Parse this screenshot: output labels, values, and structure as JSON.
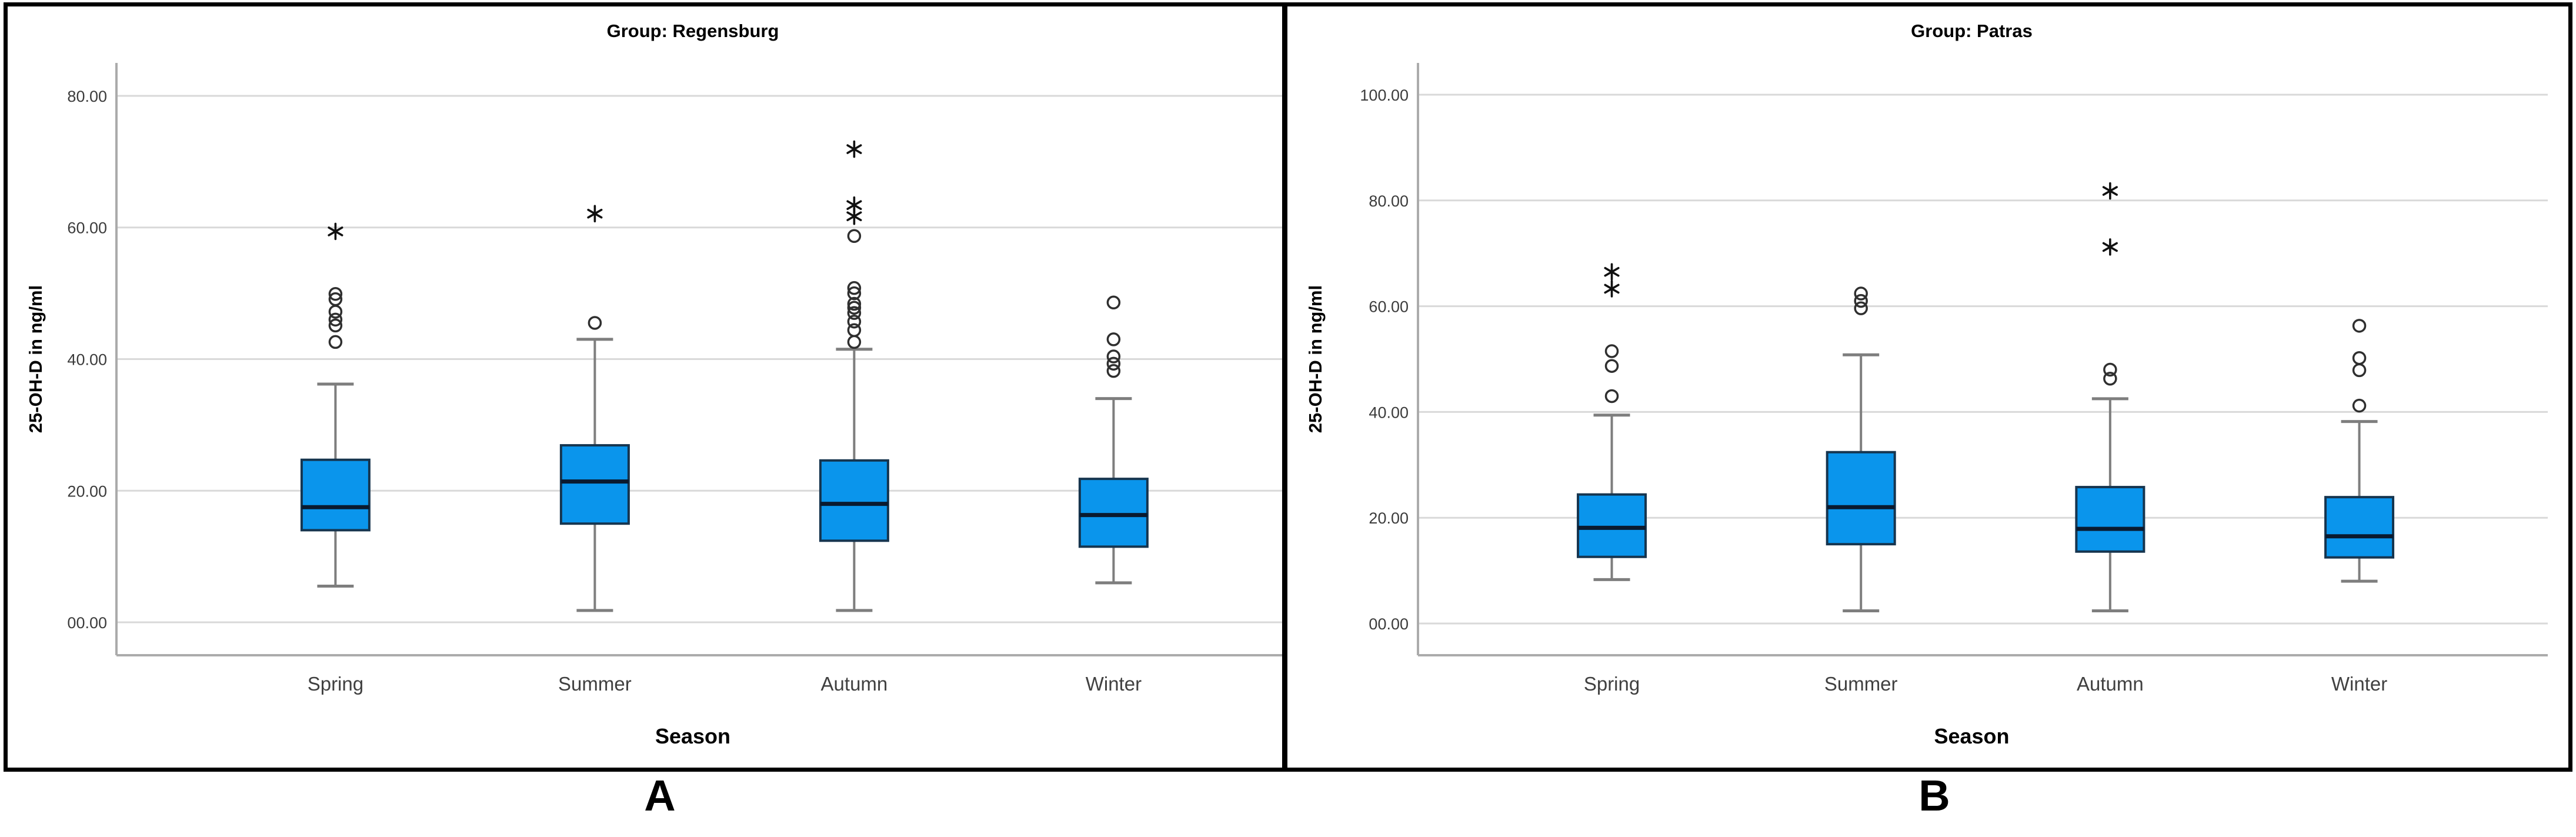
{
  "figure": {
    "panel_a_label": "A",
    "panel_b_label": "B"
  },
  "colors": {
    "box_fill": "#0A95EC",
    "box_border": "#16354F",
    "median": "#0A1A2F",
    "whisker": "#7E7E7E",
    "gridline": "#D9D9D9",
    "axis": "#ABABAB",
    "outlier": "#2F2F2F",
    "extreme": "#111111",
    "tick_text": "#3C3C3C",
    "category_text": "#404040",
    "title_text": "#000000",
    "frame": "#000000"
  },
  "chart_data": [
    {
      "type": "boxplot",
      "panel": "A",
      "title": "Group: Regensburg",
      "xlabel": "Season",
      "ylabel": "25-OH-D in ng/ml",
      "ylim": [
        -5,
        85
      ],
      "grid": true,
      "yticks": [
        {
          "value": 0,
          "label": "00.00"
        },
        {
          "value": 20,
          "label": "20.00"
        },
        {
          "value": 40,
          "label": "40.00"
        },
        {
          "value": 60,
          "label": "60.00"
        },
        {
          "value": 80,
          "label": "80.00"
        }
      ],
      "categories": [
        "Spring",
        "Summer",
        "Autumn",
        "Winter"
      ],
      "boxes": [
        {
          "category": "Spring",
          "whisker_low": 5.5,
          "q1": 14.0,
          "median": 17.5,
          "q3": 24.7,
          "whisker_high": 36.2,
          "outliers": [
            42.6,
            45.1,
            46.0,
            47.2,
            49.1,
            49.9
          ],
          "extremes": [
            59.4
          ]
        },
        {
          "category": "Summer",
          "whisker_low": 1.8,
          "q1": 15.0,
          "median": 21.4,
          "q3": 26.9,
          "whisker_high": 43.0,
          "outliers": [
            45.5
          ],
          "extremes": [
            62.1
          ]
        },
        {
          "category": "Autumn",
          "whisker_low": 1.8,
          "q1": 12.4,
          "median": 18.0,
          "q3": 24.6,
          "whisker_high": 41.5,
          "outliers": [
            42.6,
            44.4,
            45.7,
            47.0,
            47.8,
            48.4,
            50.0,
            50.8,
            58.7
          ],
          "extremes": [
            61.7,
            63.4,
            71.9
          ]
        },
        {
          "category": "Winter",
          "whisker_low": 6.0,
          "q1": 11.5,
          "median": 16.3,
          "q3": 21.8,
          "whisker_high": 34.0,
          "outliers": [
            38.2,
            39.3,
            40.4,
            43.0,
            48.6
          ],
          "extremes": []
        }
      ]
    },
    {
      "type": "boxplot",
      "panel": "B",
      "title": "Group: Patras",
      "xlabel": "Season",
      "ylabel": "25-OH-D in ng/ml",
      "ylim": [
        -6,
        106
      ],
      "grid": true,
      "yticks": [
        {
          "value": 0,
          "label": "00.00"
        },
        {
          "value": 20,
          "label": "20.00"
        },
        {
          "value": 40,
          "label": "40.00"
        },
        {
          "value": 60,
          "label": "60.00"
        },
        {
          "value": 80,
          "label": "80.00"
        },
        {
          "value": 100,
          "label": "100.00"
        }
      ],
      "categories": [
        "Spring",
        "Summer",
        "Autumn",
        "Winter"
      ],
      "boxes": [
        {
          "category": "Spring",
          "whisker_low": 8.3,
          "q1": 12.6,
          "median": 18.1,
          "q3": 24.4,
          "whisker_high": 39.4,
          "outliers": [
            43.0,
            48.7,
            51.5
          ],
          "extremes": [
            63.3,
            66.5
          ]
        },
        {
          "category": "Summer",
          "whisker_low": 2.4,
          "q1": 15.0,
          "median": 22.0,
          "q3": 32.4,
          "whisker_high": 50.8,
          "outliers": [
            59.6,
            61.0,
            62.4
          ],
          "extremes": []
        },
        {
          "category": "Autumn",
          "whisker_low": 2.4,
          "q1": 13.6,
          "median": 17.9,
          "q3": 25.8,
          "whisker_high": 42.5,
          "outliers": [
            46.3,
            48.0
          ],
          "extremes": [
            71.2,
            81.8
          ]
        },
        {
          "category": "Winter",
          "whisker_low": 8.0,
          "q1": 12.5,
          "median": 16.5,
          "q3": 23.9,
          "whisker_high": 38.2,
          "outliers": [
            41.2,
            47.9,
            50.2,
            56.3
          ],
          "extremes": []
        }
      ]
    }
  ]
}
